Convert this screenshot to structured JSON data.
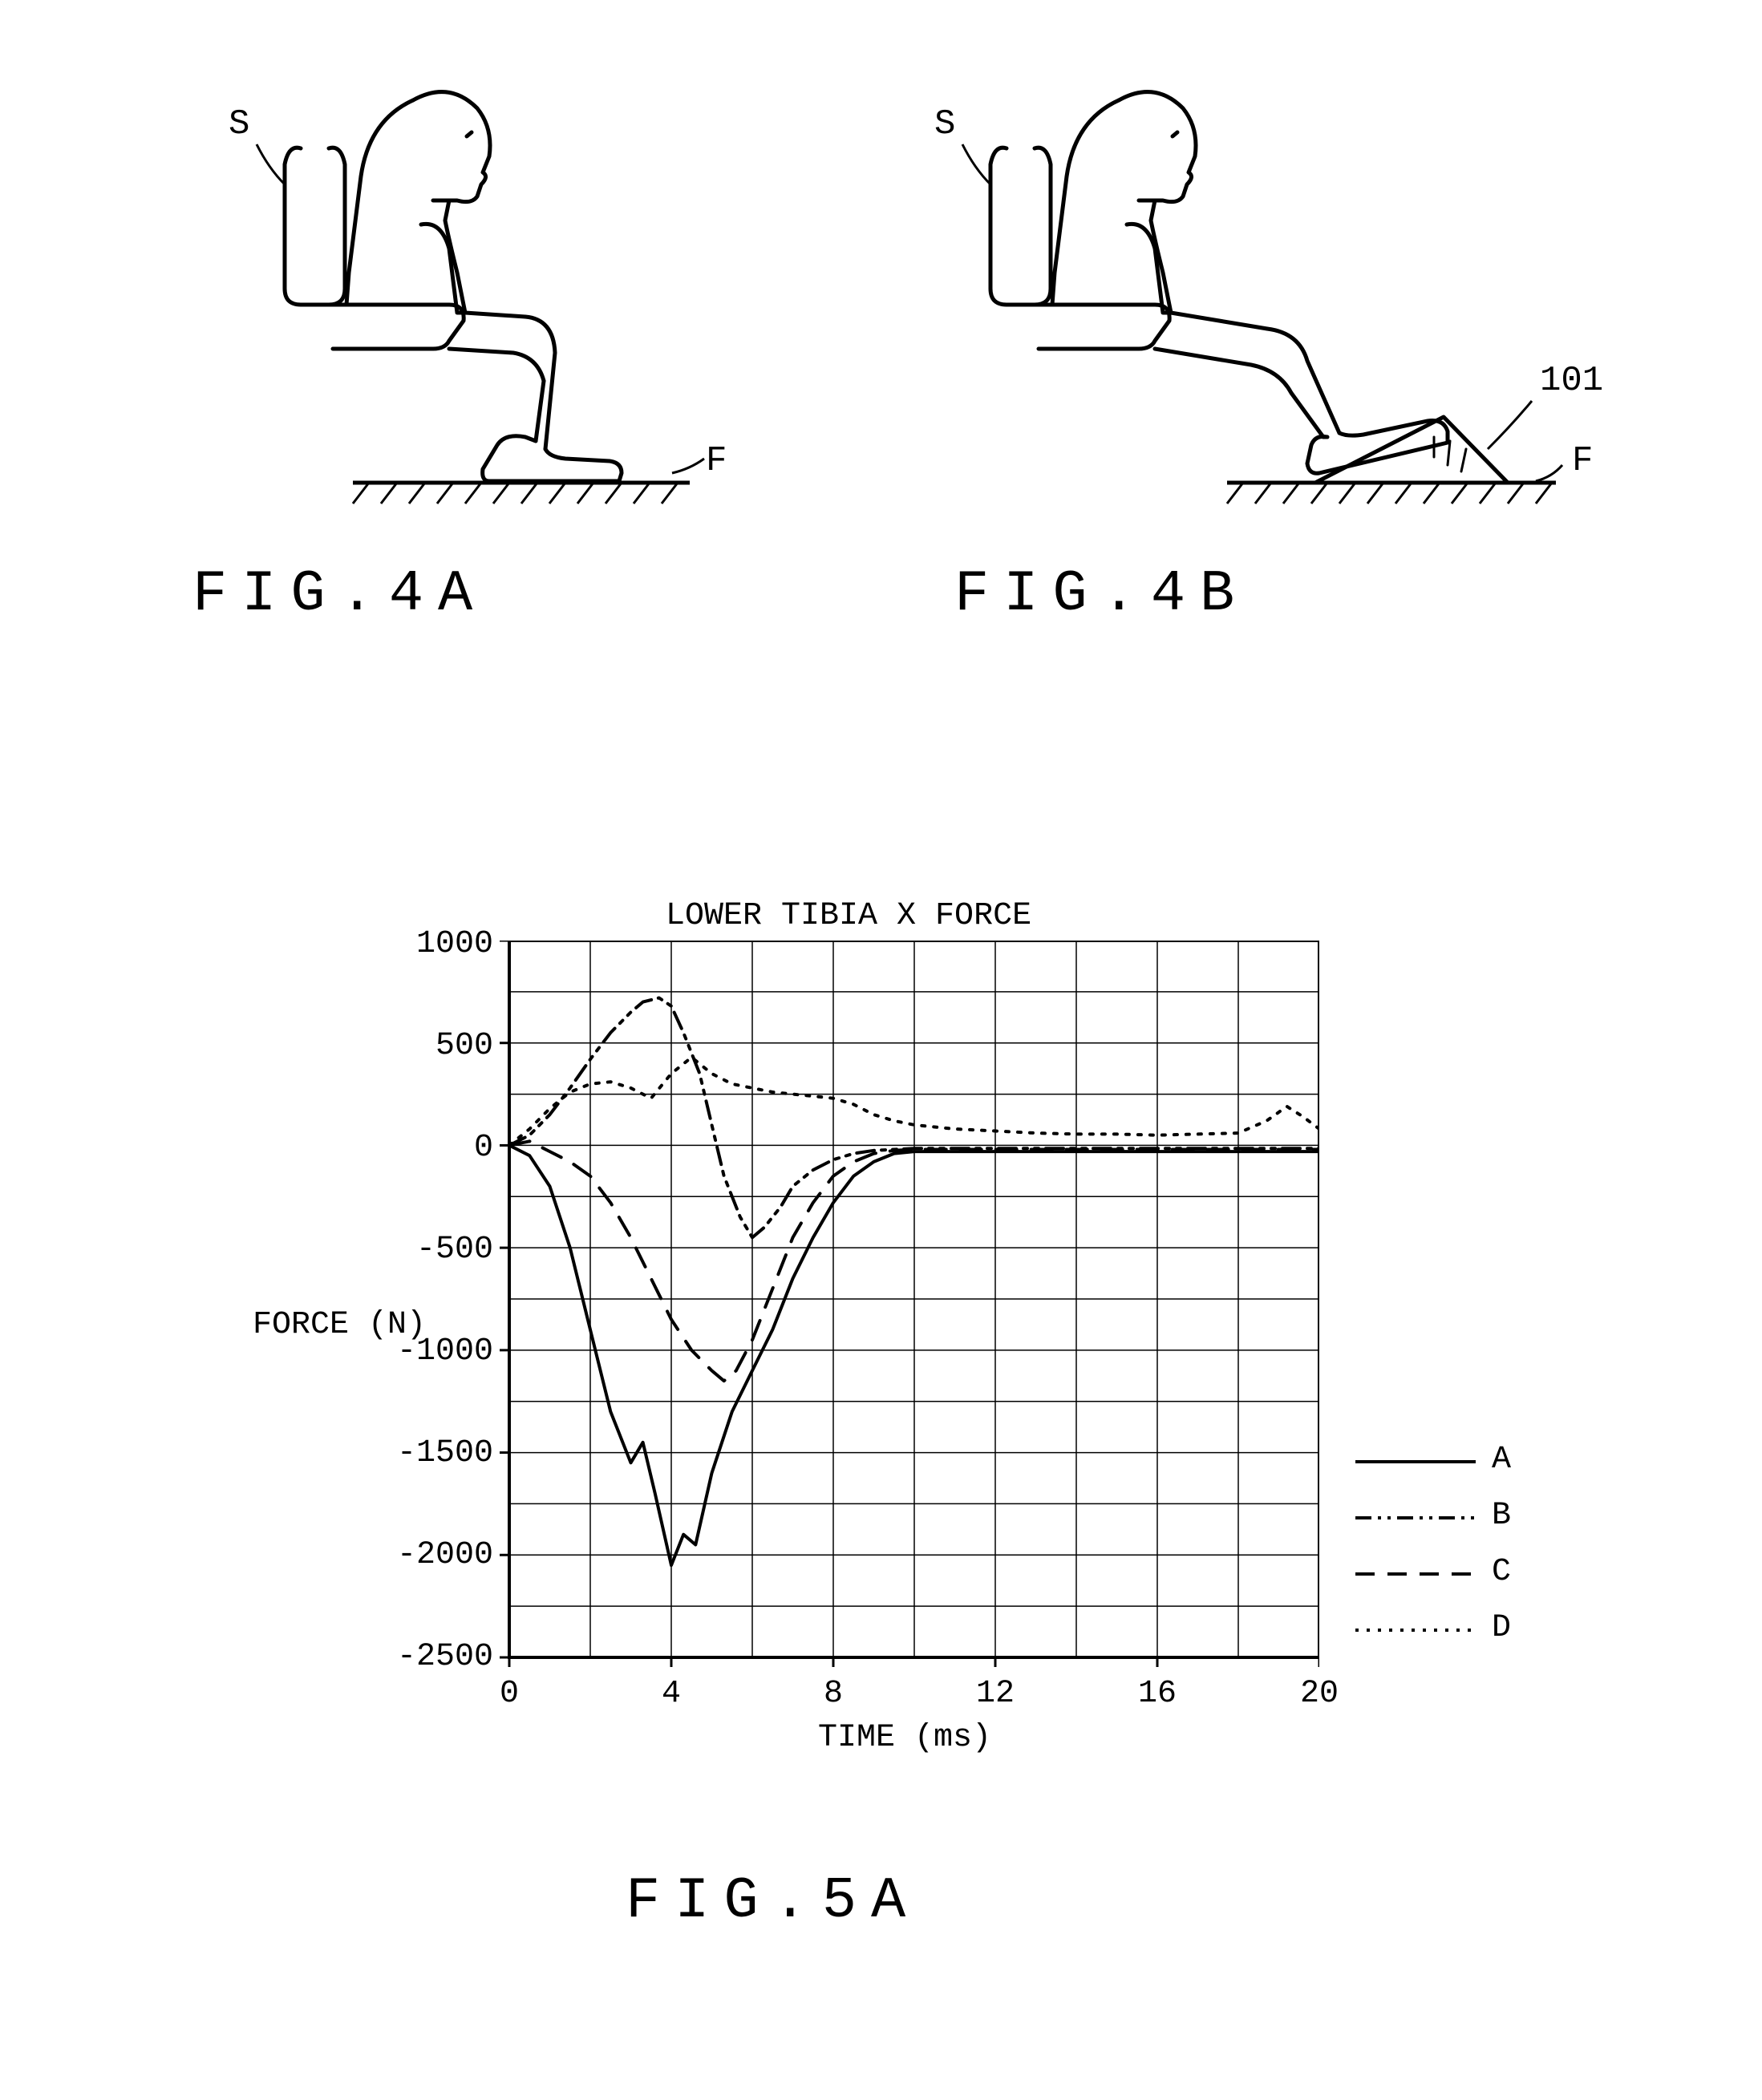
{
  "figures": {
    "fig4a": {
      "label": "FIG.4A",
      "seat_label": "S",
      "floor_label": "F"
    },
    "fig4b": {
      "label": "FIG.4B",
      "seat_label": "S",
      "floor_label": "F",
      "wedge_label": "101"
    },
    "fig5a": {
      "label": "FIG.5A"
    }
  },
  "chart": {
    "title": "LOWER TIBIA X FORCE",
    "xlabel": "TIME (ms)",
    "ylabel": "FORCE  (N)",
    "xlim": [
      0,
      20
    ],
    "ylim": [
      -2500,
      1000
    ],
    "xticks": [
      0,
      4,
      8,
      12,
      16,
      20
    ],
    "yticks": [
      1000,
      500,
      0,
      -500,
      -1000,
      -1500,
      -2000,
      -2500
    ],
    "grid_step_x": 2,
    "grid_step_y": 250,
    "plot_background": "#ffffff",
    "grid_color": "#000000",
    "border_color": "#000000",
    "series": {
      "A": {
        "label": "A",
        "dash": "solid",
        "color": "#000000",
        "width": 4,
        "data": [
          [
            0,
            0
          ],
          [
            0.5,
            -50
          ],
          [
            1,
            -200
          ],
          [
            1.5,
            -500
          ],
          [
            2,
            -900
          ],
          [
            2.5,
            -1300
          ],
          [
            3,
            -1550
          ],
          [
            3.3,
            -1450
          ],
          [
            3.6,
            -1700
          ],
          [
            4,
            -2050
          ],
          [
            4.3,
            -1900
          ],
          [
            4.6,
            -1950
          ],
          [
            5,
            -1600
          ],
          [
            5.5,
            -1300
          ],
          [
            6,
            -1100
          ],
          [
            6.5,
            -900
          ],
          [
            7,
            -650
          ],
          [
            7.5,
            -450
          ],
          [
            8,
            -280
          ],
          [
            8.5,
            -150
          ],
          [
            9,
            -80
          ],
          [
            9.5,
            -40
          ],
          [
            10,
            -30
          ],
          [
            12,
            -30
          ],
          [
            14,
            -30
          ],
          [
            16,
            -30
          ],
          [
            18,
            -30
          ],
          [
            20,
            -30
          ]
        ]
      },
      "B": {
        "label": "B",
        "dash": "dash-dot-dot",
        "color": "#000000",
        "width": 4,
        "data": [
          [
            0,
            0
          ],
          [
            0.5,
            50
          ],
          [
            1,
            150
          ],
          [
            1.5,
            280
          ],
          [
            2,
            420
          ],
          [
            2.5,
            550
          ],
          [
            3,
            650
          ],
          [
            3.3,
            700
          ],
          [
            3.7,
            720
          ],
          [
            4,
            680
          ],
          [
            4.3,
            550
          ],
          [
            4.7,
            350
          ],
          [
            5,
            100
          ],
          [
            5.3,
            -150
          ],
          [
            5.7,
            -350
          ],
          [
            6,
            -450
          ],
          [
            6.3,
            -400
          ],
          [
            6.7,
            -300
          ],
          [
            7,
            -200
          ],
          [
            7.5,
            -120
          ],
          [
            8,
            -70
          ],
          [
            8.5,
            -40
          ],
          [
            9,
            -25
          ],
          [
            10,
            -15
          ],
          [
            12,
            -15
          ],
          [
            14,
            -15
          ],
          [
            16,
            -15
          ],
          [
            18,
            -15
          ],
          [
            20,
            -15
          ]
        ]
      },
      "C": {
        "label": "C",
        "dash": "long-dash",
        "color": "#000000",
        "width": 4,
        "data": [
          [
            0,
            0
          ],
          [
            0.5,
            20
          ],
          [
            1,
            -30
          ],
          [
            1.5,
            -80
          ],
          [
            2,
            -150
          ],
          [
            2.5,
            -280
          ],
          [
            3,
            -450
          ],
          [
            3.5,
            -650
          ],
          [
            4,
            -850
          ],
          [
            4.5,
            -1000
          ],
          [
            5,
            -1100
          ],
          [
            5.3,
            -1150
          ],
          [
            5.6,
            -1100
          ],
          [
            6,
            -950
          ],
          [
            6.5,
            -700
          ],
          [
            7,
            -450
          ],
          [
            7.5,
            -280
          ],
          [
            8,
            -150
          ],
          [
            8.5,
            -80
          ],
          [
            9,
            -40
          ],
          [
            9.5,
            -25
          ],
          [
            10,
            -20
          ],
          [
            12,
            -20
          ],
          [
            14,
            -20
          ],
          [
            16,
            -20
          ],
          [
            18,
            -20
          ],
          [
            20,
            -20
          ]
        ]
      },
      "D": {
        "label": "D",
        "dash": "dotted",
        "color": "#000000",
        "width": 4,
        "data": [
          [
            0,
            0
          ],
          [
            0.5,
            80
          ],
          [
            1,
            180
          ],
          [
            1.5,
            260
          ],
          [
            2,
            300
          ],
          [
            2.5,
            310
          ],
          [
            3,
            280
          ],
          [
            3.5,
            230
          ],
          [
            4,
            350
          ],
          [
            4.5,
            430
          ],
          [
            5,
            350
          ],
          [
            5.5,
            300
          ],
          [
            6,
            280
          ],
          [
            6.5,
            260
          ],
          [
            7,
            250
          ],
          [
            7.5,
            240
          ],
          [
            8,
            230
          ],
          [
            8.5,
            200
          ],
          [
            9,
            150
          ],
          [
            9.5,
            120
          ],
          [
            10,
            100
          ],
          [
            11,
            80
          ],
          [
            12,
            70
          ],
          [
            13,
            60
          ],
          [
            14,
            55
          ],
          [
            15,
            55
          ],
          [
            16,
            50
          ],
          [
            17,
            55
          ],
          [
            18,
            60
          ],
          [
            18.7,
            120
          ],
          [
            19.2,
            190
          ],
          [
            19.6,
            140
          ],
          [
            20,
            80
          ]
        ]
      }
    },
    "legend": [
      "A",
      "B",
      "C",
      "D"
    ]
  }
}
